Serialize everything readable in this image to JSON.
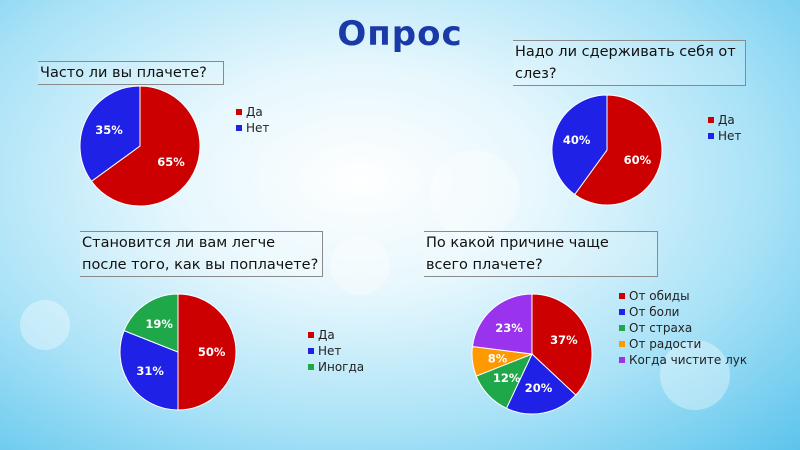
{
  "page": {
    "title": "Опрос"
  },
  "chart_data": [
    {
      "type": "pie",
      "title": "Часто ли вы плачете?",
      "labels": [
        "Да",
        "Нет"
      ],
      "values": [
        65,
        35
      ],
      "value_labels": [
        "65%",
        "35%"
      ],
      "colors": [
        "#cc0000",
        "#1f22e6"
      ],
      "legend_position": "right"
    },
    {
      "type": "pie",
      "title": "Надо ли сдерживать себя от слез?",
      "labels": [
        "Да",
        "Нет"
      ],
      "values": [
        60,
        40
      ],
      "value_labels": [
        "60%",
        "40%"
      ],
      "colors": [
        "#cc0000",
        "#1f22e6"
      ],
      "legend_position": "right"
    },
    {
      "type": "pie",
      "title": "Становится ли вам легче после того, как вы поплачете?",
      "labels": [
        "Да",
        "Нет",
        "Иногда"
      ],
      "values": [
        50,
        31,
        19
      ],
      "value_labels": [
        "50%",
        "31%",
        "19%"
      ],
      "colors": [
        "#cc0000",
        "#1f22e6",
        "#1fa84a"
      ],
      "legend_position": "right"
    },
    {
      "type": "pie",
      "title": "По какой причине чаще всего плачете?",
      "labels": [
        "От обиды",
        "От боли",
        "От страха",
        "От радости",
        "Когда чистите лук"
      ],
      "values": [
        37,
        20,
        12,
        8,
        23
      ],
      "value_labels": [
        "37%",
        "20%",
        "12%",
        "8%",
        "23%"
      ],
      "colors": [
        "#cc0000",
        "#1f22e6",
        "#1fa84a",
        "#ff9900",
        "#9933ee"
      ],
      "legend_position": "right"
    }
  ]
}
